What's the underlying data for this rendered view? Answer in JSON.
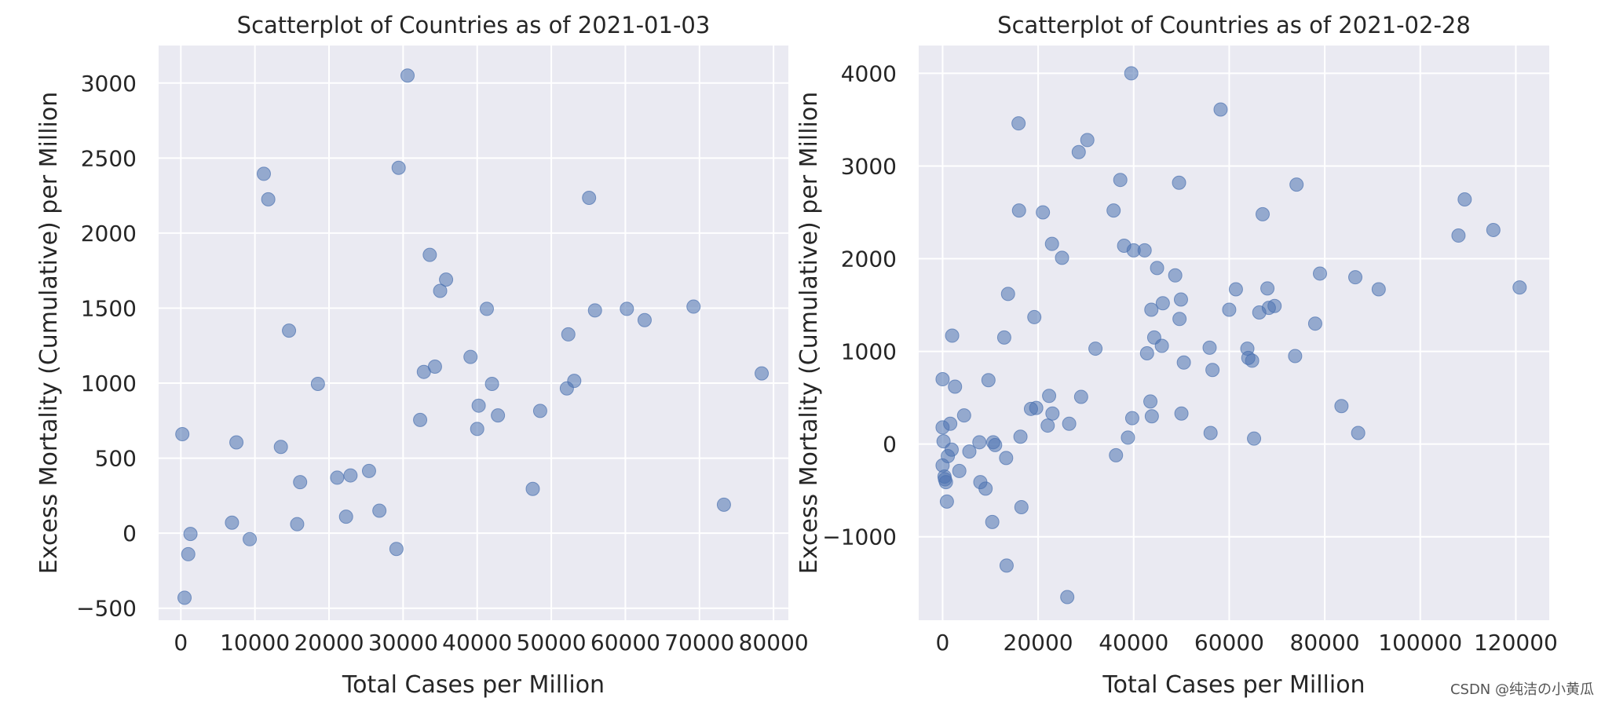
{
  "chart_data": [
    {
      "type": "scatter",
      "title": "Scatterplot of Countries as of 2021-01-03",
      "xlabel": "Total Cases per Million",
      "ylabel": "Excess Mortality (Cumulative) per Million",
      "xlim": [
        -3000,
        82000
      ],
      "ylim": [
        -580,
        3250
      ],
      "xticks": [
        0,
        10000,
        20000,
        30000,
        40000,
        50000,
        60000,
        70000,
        80000
      ],
      "yticks": [
        -500,
        0,
        500,
        1000,
        1500,
        2000,
        2500,
        3000
      ],
      "grid": true,
      "point_color": "#4c72b0",
      "background": "#eaeaf2",
      "points": [
        [
          200,
          660
        ],
        [
          500,
          -430
        ],
        [
          1000,
          -140
        ],
        [
          1300,
          -5
        ],
        [
          6900,
          70
        ],
        [
          7500,
          605
        ],
        [
          9300,
          -40
        ],
        [
          11200,
          2395
        ],
        [
          11800,
          2225
        ],
        [
          13500,
          575
        ],
        [
          14600,
          1350
        ],
        [
          15700,
          60
        ],
        [
          16100,
          340
        ],
        [
          18500,
          995
        ],
        [
          21100,
          370
        ],
        [
          22300,
          110
        ],
        [
          22900,
          385
        ],
        [
          25400,
          415
        ],
        [
          26800,
          150
        ],
        [
          29100,
          -105
        ],
        [
          29400,
          2435
        ],
        [
          30600,
          3050
        ],
        [
          32300,
          755
        ],
        [
          32800,
          1075
        ],
        [
          33600,
          1855
        ],
        [
          34300,
          1110
        ],
        [
          35000,
          1615
        ],
        [
          35800,
          1690
        ],
        [
          39100,
          1175
        ],
        [
          40000,
          695
        ],
        [
          40200,
          850
        ],
        [
          41300,
          1495
        ],
        [
          42000,
          995
        ],
        [
          42800,
          785
        ],
        [
          47500,
          295
        ],
        [
          48500,
          815
        ],
        [
          52100,
          965
        ],
        [
          52300,
          1325
        ],
        [
          53100,
          1015
        ],
        [
          55100,
          2235
        ],
        [
          55900,
          1485
        ],
        [
          60200,
          1495
        ],
        [
          62600,
          1420
        ],
        [
          69200,
          1510
        ],
        [
          73300,
          190
        ],
        [
          78400,
          1065
        ]
      ]
    },
    {
      "type": "scatter",
      "title": "Scatterplot of Countries as of 2021-02-28",
      "xlabel": "Total Cases per Million",
      "ylabel": "Excess Mortality (Cumulative) per Million",
      "xlim": [
        -5000,
        127000
      ],
      "ylim": [
        -1900,
        4300
      ],
      "xticks": [
        0,
        20000,
        40000,
        60000,
        80000,
        100000,
        120000
      ],
      "yticks": [
        -1000,
        0,
        1000,
        2000,
        3000,
        4000
      ],
      "grid": true,
      "point_color": "#4c72b0",
      "background": "#eaeaf2",
      "points": [
        [
          0,
          700
        ],
        [
          0,
          180
        ],
        [
          0,
          -230
        ],
        [
          200,
          30
        ],
        [
          400,
          -350
        ],
        [
          500,
          -380
        ],
        [
          700,
          -410
        ],
        [
          900,
          -620
        ],
        [
          1100,
          -130
        ],
        [
          1600,
          220
        ],
        [
          1900,
          -60
        ],
        [
          2000,
          1170
        ],
        [
          2600,
          620
        ],
        [
          3500,
          -290
        ],
        [
          4500,
          310
        ],
        [
          5600,
          -80
        ],
        [
          7700,
          20
        ],
        [
          7900,
          -410
        ],
        [
          9000,
          -480
        ],
        [
          9600,
          690
        ],
        [
          10400,
          -840
        ],
        [
          10600,
          20
        ],
        [
          11000,
          -10
        ],
        [
          12900,
          1150
        ],
        [
          13300,
          -150
        ],
        [
          13400,
          -1310
        ],
        [
          13700,
          1620
        ],
        [
          15900,
          3460
        ],
        [
          16000,
          2520
        ],
        [
          16300,
          80
        ],
        [
          16500,
          -680
        ],
        [
          18500,
          380
        ],
        [
          19200,
          1370
        ],
        [
          19600,
          390
        ],
        [
          21000,
          2500
        ],
        [
          22000,
          200
        ],
        [
          22300,
          520
        ],
        [
          22900,
          2160
        ],
        [
          23000,
          330
        ],
        [
          25000,
          2010
        ],
        [
          26100,
          -1650
        ],
        [
          26500,
          220
        ],
        [
          28500,
          3150
        ],
        [
          29000,
          510
        ],
        [
          30300,
          3280
        ],
        [
          32000,
          1030
        ],
        [
          35800,
          2520
        ],
        [
          36300,
          -120
        ],
        [
          37200,
          2850
        ],
        [
          38000,
          2140
        ],
        [
          38800,
          70
        ],
        [
          39500,
          4000
        ],
        [
          39700,
          280
        ],
        [
          40000,
          2090
        ],
        [
          42300,
          2090
        ],
        [
          42800,
          980
        ],
        [
          43500,
          460
        ],
        [
          43700,
          1450
        ],
        [
          43800,
          300
        ],
        [
          44300,
          1150
        ],
        [
          44900,
          1900
        ],
        [
          45900,
          1060
        ],
        [
          46100,
          1520
        ],
        [
          48700,
          1820
        ],
        [
          49500,
          2820
        ],
        [
          49600,
          1350
        ],
        [
          49900,
          1560
        ],
        [
          50000,
          330
        ],
        [
          50500,
          880
        ],
        [
          55900,
          1040
        ],
        [
          56100,
          120
        ],
        [
          56500,
          800
        ],
        [
          58200,
          3610
        ],
        [
          60000,
          1450
        ],
        [
          61400,
          1670
        ],
        [
          63800,
          1030
        ],
        [
          64000,
          930
        ],
        [
          64800,
          900
        ],
        [
          65200,
          60
        ],
        [
          66300,
          1420
        ],
        [
          67000,
          2480
        ],
        [
          68000,
          1680
        ],
        [
          68300,
          1470
        ],
        [
          69500,
          1490
        ],
        [
          73800,
          950
        ],
        [
          74100,
          2800
        ],
        [
          78000,
          1300
        ],
        [
          79000,
          1840
        ],
        [
          83500,
          410
        ],
        [
          86400,
          1800
        ],
        [
          87000,
          120
        ],
        [
          91300,
          1670
        ],
        [
          108000,
          2250
        ],
        [
          109300,
          2640
        ],
        [
          115300,
          2310
        ],
        [
          120800,
          1690
        ]
      ]
    }
  ],
  "watermark": "CSDN @纯洁の小黄瓜"
}
